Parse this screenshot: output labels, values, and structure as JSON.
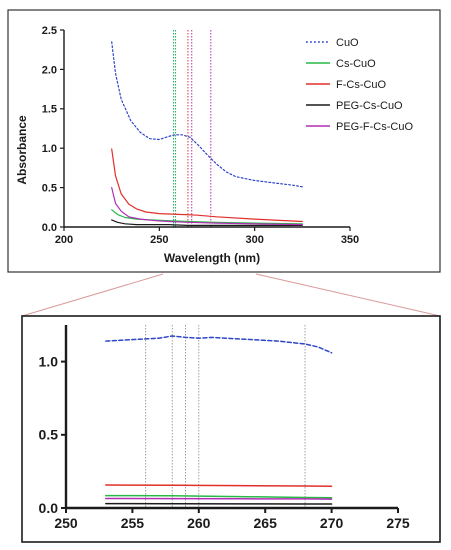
{
  "chart_data": [
    {
      "type": "line",
      "title": "",
      "xlabel": "Wavelength (nm)",
      "ylabel": "Absorbance",
      "xlim": [
        200,
        350
      ],
      "ylim": [
        0,
        2.5
      ],
      "xticks": [
        200,
        250,
        300,
        350
      ],
      "yticks": [
        0.0,
        0.5,
        1.0,
        1.5,
        2.0,
        2.5
      ],
      "xtick_labels": [
        "200",
        "250",
        "300",
        "350"
      ],
      "ytick_labels": [
        "0.0",
        "0.5",
        "1.0",
        "1.5",
        "2.0",
        "2.5"
      ],
      "legend": "top-right",
      "grid": false,
      "series": [
        {
          "name": "CuO",
          "color": "#2f46c8",
          "style": "dotted",
          "x": [
            225,
            227,
            230,
            235,
            240,
            245,
            250,
            255,
            258,
            262,
            266,
            270,
            275,
            280,
            285,
            290,
            300,
            310,
            320,
            325
          ],
          "y": [
            2.35,
            1.95,
            1.62,
            1.35,
            1.2,
            1.12,
            1.11,
            1.15,
            1.17,
            1.17,
            1.14,
            1.05,
            0.92,
            0.8,
            0.7,
            0.64,
            0.59,
            0.56,
            0.53,
            0.51
          ]
        },
        {
          "name": "Cs-CuO",
          "color": "#27b845",
          "style": "solid",
          "x": [
            225,
            228,
            232,
            238,
            245,
            255,
            265,
            280,
            300,
            325
          ],
          "y": [
            0.22,
            0.16,
            0.12,
            0.1,
            0.09,
            0.08,
            0.07,
            0.06,
            0.05,
            0.04
          ]
        },
        {
          "name": "F-Cs-CuO",
          "color": "#e0302a",
          "style": "solid",
          "x": [
            225,
            227,
            230,
            234,
            238,
            243,
            250,
            260,
            270,
            280,
            300,
            325
          ],
          "y": [
            0.99,
            0.65,
            0.42,
            0.29,
            0.23,
            0.19,
            0.17,
            0.16,
            0.15,
            0.13,
            0.1,
            0.07
          ]
        },
        {
          "name": "PEG-Cs-CuO",
          "color": "#1b1b1b",
          "style": "solid",
          "x": [
            225,
            228,
            232,
            238,
            245,
            255,
            265,
            280,
            300,
            325
          ],
          "y": [
            0.09,
            0.06,
            0.04,
            0.03,
            0.03,
            0.03,
            0.02,
            0.02,
            0.02,
            0.02
          ]
        },
        {
          "name": "PEG-F-Cs-CuO",
          "color": "#b02fb5",
          "style": "solid",
          "x": [
            225,
            227,
            230,
            234,
            240,
            248,
            255,
            265,
            280,
            300,
            325
          ],
          "y": [
            0.5,
            0.3,
            0.2,
            0.13,
            0.1,
            0.08,
            0.07,
            0.06,
            0.05,
            0.04,
            0.03
          ]
        }
      ],
      "reference_lines": [
        {
          "x": 257.5,
          "color": "#1e9e8c"
        },
        {
          "x": 258.5,
          "color": "#27b845"
        },
        {
          "x": 265,
          "color": "#e0302a"
        },
        {
          "x": 267,
          "color": "#b02fb5"
        },
        {
          "x": 277,
          "color": "#b02fb5"
        }
      ]
    },
    {
      "type": "line",
      "title": "",
      "xlabel": "",
      "ylabel": "",
      "xlim": [
        250,
        275
      ],
      "ylim": [
        0,
        1.25
      ],
      "xticks": [
        250,
        255,
        260,
        265,
        270,
        275
      ],
      "yticks": [
        0.0,
        0.5,
        1.0
      ],
      "xtick_labels": [
        "250",
        "255",
        "260",
        "265",
        "270",
        "275"
      ],
      "ytick_labels": [
        "0.0",
        "0.5",
        "1.0"
      ],
      "grid": false,
      "series": [
        {
          "name": "CuO",
          "color": "#2f46c8",
          "style": "dashed",
          "x": [
            253,
            254,
            255,
            256,
            257,
            258,
            259,
            260,
            261,
            262,
            263,
            264,
            265,
            266,
            267,
            268,
            269,
            270
          ],
          "y": [
            1.14,
            1.145,
            1.15,
            1.155,
            1.16,
            1.175,
            1.165,
            1.16,
            1.165,
            1.16,
            1.155,
            1.15,
            1.145,
            1.14,
            1.13,
            1.12,
            1.1,
            1.06
          ]
        },
        {
          "name": "F-Cs-CuO",
          "color": "#e0302a",
          "style": "solid",
          "x": [
            253,
            258,
            263,
            268,
            270
          ],
          "y": [
            0.157,
            0.155,
            0.153,
            0.15,
            0.148
          ]
        },
        {
          "name": "Cs-CuO",
          "color": "#27b845",
          "style": "solid",
          "x": [
            253,
            258,
            263,
            268,
            270
          ],
          "y": [
            0.085,
            0.083,
            0.078,
            0.072,
            0.07
          ]
        },
        {
          "name": "PEG-F-Cs-CuO",
          "color": "#b02fb5",
          "style": "solid",
          "x": [
            253,
            258,
            263,
            268,
            270
          ],
          "y": [
            0.065,
            0.064,
            0.063,
            0.062,
            0.061
          ]
        },
        {
          "name": "PEG-Cs-CuO",
          "color": "#1b1b1b",
          "style": "solid",
          "x": [
            253,
            258,
            263,
            268,
            270
          ],
          "y": [
            0.03,
            0.029,
            0.028,
            0.027,
            0.027
          ]
        }
      ],
      "reference_lines": [
        {
          "x": 256,
          "color": "#8a8a8a"
        },
        {
          "x": 258,
          "color": "#8a8a8a"
        },
        {
          "x": 259,
          "color": "#8a8a8a"
        },
        {
          "x": 260,
          "color": "#8a8a8a"
        },
        {
          "x": 268,
          "color": "#8a8a8a"
        }
      ]
    }
  ],
  "colors": {
    "frame": "#333333",
    "connector": "#d99a9a",
    "axis": "#1b1b1b"
  }
}
